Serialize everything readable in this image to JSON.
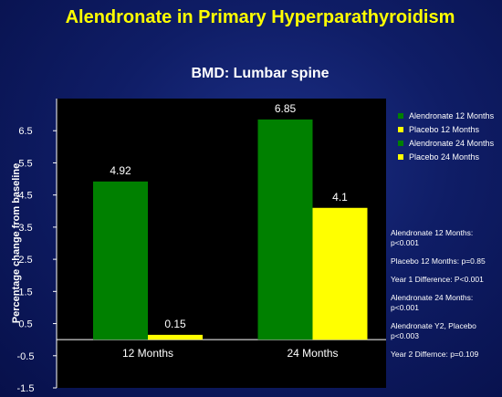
{
  "slide_title": "Alendronate in Primary Hyperparathyroidism",
  "colors": {
    "green": "#008000",
    "yellow": "#ffff00",
    "axis": "#ffffff",
    "plot_bg": "#000000"
  },
  "chart_data": {
    "type": "bar",
    "title": "BMD: Lumbar spine",
    "ylabel": "Percentage change from baseline",
    "xlabel": "",
    "categories": [
      "12 Months",
      "24 Months"
    ],
    "series": [
      {
        "name": "Alendronate",
        "values": [
          4.92,
          6.85
        ],
        "color": "#008000",
        "data_labels": [
          "4.92",
          "6.85"
        ]
      },
      {
        "name": "Placebo",
        "values": [
          0.15,
          4.1
        ],
        "color": "#ffff00",
        "data_labels": [
          "0.15",
          "4.1"
        ]
      }
    ],
    "ylim": [
      -1.5,
      7.5
    ],
    "yticks": [
      "6.5",
      "5.5",
      "4.5",
      "3.5",
      "2.5",
      "1.5",
      "0.5",
      "-0.5",
      "-1.5"
    ],
    "grid": false,
    "legend": [
      {
        "label": "Alendronate 12 Months",
        "color": "#008000"
      },
      {
        "label": "Placebo 12 Months",
        "color": "#ffff00"
      },
      {
        "label": "Alendronate 24 Months",
        "color": "#008000"
      },
      {
        "label": "Placebo 24 Months",
        "color": "#ffff00"
      }
    ],
    "legend_position": "right"
  },
  "notes": [
    "Alendronate 12 Months: p<0.001",
    "Placebo 12 Months: p=0.85",
    "Year 1 Difference: P<0.001",
    "Alendronate 24 Months: p<0.001",
    "Alendronate Y2, Placebo p<0.003",
    "Year 2 Differnce: p=0.109"
  ]
}
